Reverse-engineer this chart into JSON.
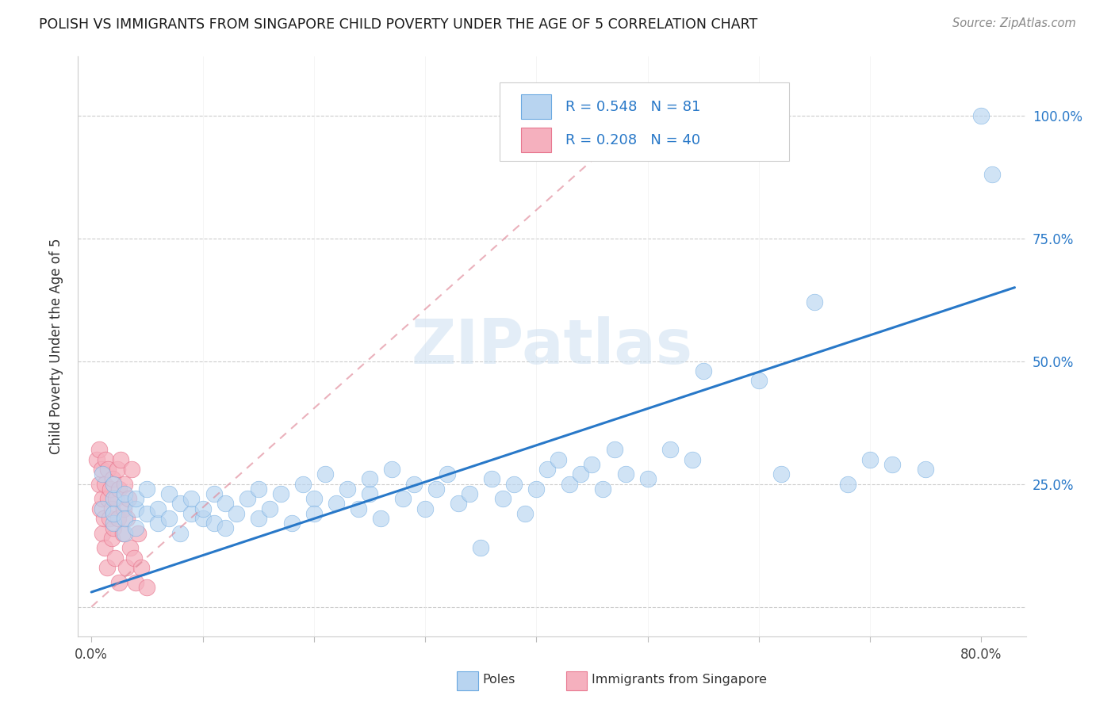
{
  "title": "POLISH VS IMMIGRANTS FROM SINGAPORE CHILD POVERTY UNDER THE AGE OF 5 CORRELATION CHART",
  "source": "Source: ZipAtlas.com",
  "ylabel": "Child Poverty Under the Age of 5",
  "xlim": [
    -0.012,
    0.84
  ],
  "ylim": [
    -0.06,
    1.12
  ],
  "poles_R": 0.548,
  "poles_N": 81,
  "sing_R": 0.208,
  "sing_N": 40,
  "poles_color": "#b8d4f0",
  "poles_edge": "#6aa8e0",
  "sing_color": "#f5b0be",
  "sing_edge": "#e87890",
  "trend_color_poles": "#2878c8",
  "trend_color_sing": "#e08898",
  "watermark_text": "ZIPatlas",
  "legend_label_poles": "Poles",
  "legend_label_sing": "Immigrants from Singapore",
  "x_tick_positions": [
    0.0,
    0.1,
    0.2,
    0.3,
    0.4,
    0.5,
    0.6,
    0.7,
    0.8
  ],
  "x_tick_labels": [
    "0.0%",
    "",
    "",
    "",
    "",
    "",
    "",
    "",
    "80.0%"
  ],
  "y_tick_positions": [
    0.0,
    0.25,
    0.5,
    0.75,
    1.0
  ],
  "y_tick_labels_right": [
    "",
    "25.0%",
    "50.0%",
    "75.0%",
    "100.0%"
  ],
  "poles_x": [
    0.01,
    0.01,
    0.02,
    0.02,
    0.02,
    0.02,
    0.03,
    0.03,
    0.03,
    0.03,
    0.04,
    0.04,
    0.04,
    0.05,
    0.05,
    0.06,
    0.06,
    0.07,
    0.07,
    0.08,
    0.08,
    0.09,
    0.09,
    0.1,
    0.1,
    0.11,
    0.11,
    0.12,
    0.12,
    0.13,
    0.14,
    0.15,
    0.15,
    0.16,
    0.17,
    0.18,
    0.19,
    0.2,
    0.2,
    0.21,
    0.22,
    0.23,
    0.24,
    0.25,
    0.25,
    0.26,
    0.27,
    0.28,
    0.29,
    0.3,
    0.31,
    0.32,
    0.33,
    0.34,
    0.35,
    0.36,
    0.37,
    0.38,
    0.39,
    0.4,
    0.41,
    0.42,
    0.43,
    0.44,
    0.45,
    0.46,
    0.47,
    0.48,
    0.5,
    0.52,
    0.54,
    0.55,
    0.6,
    0.62,
    0.65,
    0.68,
    0.7,
    0.72,
    0.75,
    0.8,
    0.81
  ],
  "poles_y": [
    0.2,
    0.27,
    0.17,
    0.22,
    0.25,
    0.19,
    0.15,
    0.21,
    0.23,
    0.18,
    0.2,
    0.16,
    0.22,
    0.19,
    0.24,
    0.17,
    0.2,
    0.18,
    0.23,
    0.15,
    0.21,
    0.19,
    0.22,
    0.18,
    0.2,
    0.17,
    0.23,
    0.16,
    0.21,
    0.19,
    0.22,
    0.18,
    0.24,
    0.2,
    0.23,
    0.17,
    0.25,
    0.22,
    0.19,
    0.27,
    0.21,
    0.24,
    0.2,
    0.23,
    0.26,
    0.18,
    0.28,
    0.22,
    0.25,
    0.2,
    0.24,
    0.27,
    0.21,
    0.23,
    0.12,
    0.26,
    0.22,
    0.25,
    0.19,
    0.24,
    0.28,
    0.3,
    0.25,
    0.27,
    0.29,
    0.24,
    0.32,
    0.27,
    0.26,
    0.32,
    0.3,
    0.48,
    0.46,
    0.27,
    0.62,
    0.25,
    0.3,
    0.29,
    0.28,
    1.0,
    0.88
  ],
  "sing_x": [
    0.005,
    0.007,
    0.007,
    0.008,
    0.009,
    0.01,
    0.01,
    0.011,
    0.012,
    0.012,
    0.013,
    0.014,
    0.015,
    0.015,
    0.016,
    0.017,
    0.018,
    0.018,
    0.019,
    0.02,
    0.021,
    0.022,
    0.023,
    0.024,
    0.025,
    0.025,
    0.026,
    0.028,
    0.029,
    0.03,
    0.031,
    0.032,
    0.033,
    0.035,
    0.036,
    0.038,
    0.04,
    0.042,
    0.045,
    0.05
  ],
  "sing_y": [
    0.3,
    0.25,
    0.32,
    0.2,
    0.28,
    0.15,
    0.22,
    0.18,
    0.25,
    0.12,
    0.3,
    0.08,
    0.22,
    0.28,
    0.18,
    0.24,
    0.14,
    0.2,
    0.26,
    0.16,
    0.1,
    0.22,
    0.28,
    0.18,
    0.24,
    0.05,
    0.3,
    0.15,
    0.2,
    0.25,
    0.08,
    0.18,
    0.22,
    0.12,
    0.28,
    0.1,
    0.05,
    0.15,
    0.08,
    0.04
  ],
  "blue_trend_x0": 0.0,
  "blue_trend_y0": 0.03,
  "blue_trend_x1": 0.83,
  "blue_trend_y1": 0.65,
  "pink_trend_x0": 0.0,
  "pink_trend_y0": 0.0,
  "pink_trend_x1": 0.52,
  "pink_trend_y1": 1.05
}
